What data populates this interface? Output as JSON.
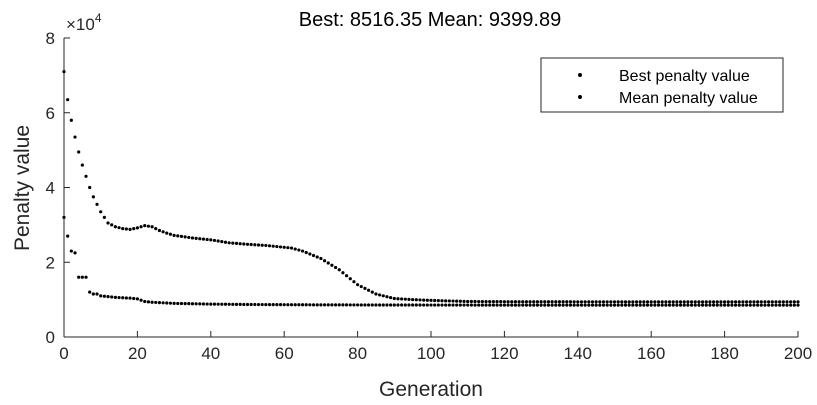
{
  "chart_data": {
    "type": "scatter",
    "title": "Best: 8516.35 Mean: 9399.89",
    "xlabel": "Generation",
    "ylabel": "Penalty value",
    "y_exponent_label": "×10",
    "y_exponent_power": "4",
    "xlim": [
      0,
      200
    ],
    "ylim": [
      0,
      80000
    ],
    "xticks": [
      "0",
      "20",
      "40",
      "60",
      "80",
      "100",
      "120",
      "140",
      "160",
      "180",
      "200"
    ],
    "yticks": [
      "0",
      "2",
      "4",
      "6",
      "8"
    ],
    "ytick_values": [
      0,
      20000,
      40000,
      60000,
      80000
    ],
    "grid": false,
    "legend_position": "top-right",
    "marker_color": "#000000",
    "series": [
      {
        "name": "Best penalty value",
        "x": [
          0,
          1,
          2,
          3,
          4,
          5,
          6,
          7,
          8,
          9,
          10,
          12,
          14,
          16,
          18,
          20,
          22,
          24,
          26,
          28,
          30,
          35,
          40,
          45,
          50,
          60,
          70,
          80,
          90,
          100,
          120,
          140,
          160,
          180,
          200
        ],
        "y": [
          32000,
          27000,
          23000,
          22500,
          16000,
          16000,
          16000,
          12000,
          11500,
          11500,
          11000,
          10800,
          10600,
          10500,
          10400,
          10200,
          9500,
          9300,
          9200,
          9100,
          9000,
          8900,
          8800,
          8750,
          8700,
          8650,
          8600,
          8580,
          8560,
          8550,
          8540,
          8530,
          8520,
          8518,
          8516
        ]
      },
      {
        "name": "Mean penalty value",
        "x": [
          0,
          1,
          2,
          3,
          4,
          5,
          6,
          7,
          8,
          10,
          12,
          14,
          16,
          18,
          20,
          22,
          24,
          26,
          28,
          30,
          35,
          40,
          45,
          50,
          55,
          60,
          62,
          65,
          70,
          75,
          80,
          85,
          90,
          95,
          100,
          110,
          120,
          140,
          160,
          180,
          200
        ],
        "y": [
          71000,
          63500,
          58000,
          53500,
          49500,
          46000,
          43000,
          40000,
          37500,
          33500,
          30500,
          29500,
          29000,
          28800,
          29200,
          29800,
          29500,
          28500,
          27800,
          27200,
          26500,
          26000,
          25200,
          24800,
          24500,
          24000,
          23800,
          23000,
          21000,
          18000,
          14000,
          11500,
          10300,
          10000,
          9800,
          9500,
          9450,
          9420,
          9410,
          9405,
          9400
        ]
      }
    ]
  }
}
